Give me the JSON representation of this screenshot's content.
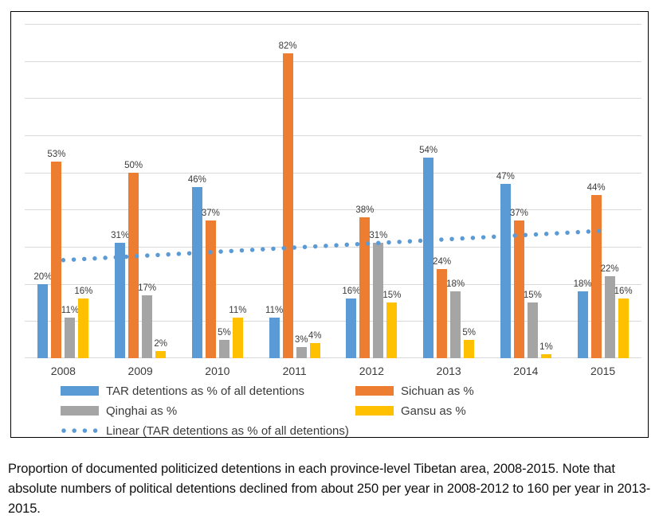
{
  "chart_data": {
    "type": "bar",
    "categories": [
      "2008",
      "2009",
      "2010",
      "2011",
      "2012",
      "2013",
      "2014",
      "2015"
    ],
    "series": [
      {
        "key": "tar",
        "name": "TAR detentions as % of all detentions",
        "color": "#5B9BD5",
        "values": [
          20,
          31,
          46,
          11,
          16,
          54,
          47,
          18
        ]
      },
      {
        "key": "sichuan",
        "name": "Sichuan as %",
        "color": "#ED7D31",
        "values": [
          53,
          50,
          37,
          82,
          38,
          24,
          37,
          44
        ]
      },
      {
        "key": "qinghai",
        "name": "Qinghai as %",
        "color": "#A5A5A5",
        "values": [
          11,
          17,
          5,
          3,
          31,
          18,
          15,
          22
        ]
      },
      {
        "key": "gansu",
        "name": "Gansu as %",
        "color": "#FFC000",
        "values": [
          16,
          2,
          11,
          4,
          15,
          5,
          1,
          16
        ]
      }
    ],
    "trendline": {
      "label": "Linear (TAR detentions as % of all detentions)",
      "color": "#5B9BD5",
      "start_pct": 26.4,
      "end_pct": 34.3
    },
    "value_label_suffix": "%",
    "ylim": [
      0,
      90
    ],
    "gridline_step": 10,
    "grid": true,
    "gridline_color": "#D9D9D9",
    "legend_position": "bottom",
    "title": "",
    "xlabel": "",
    "ylabel": ""
  },
  "caption": "Proportion of documented politicized detentions in each province-level Tibetan area, 2008-2015. Note that absolute numbers of political detentions declined from about 250 per year in 2008-2012 to 160 per year in 2013-2015."
}
